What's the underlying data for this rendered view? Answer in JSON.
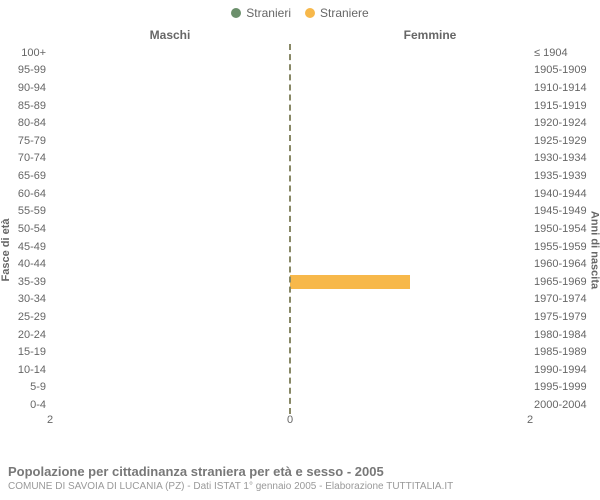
{
  "legend": {
    "items": [
      {
        "label": "Stranieri",
        "color": "#6b8f6b"
      },
      {
        "label": "Straniere",
        "color": "#f7b84a"
      }
    ]
  },
  "headers": {
    "male": "Maschi",
    "female": "Femmine"
  },
  "axis": {
    "left_title": "Fasce di età",
    "right_title": "Anni di nascita",
    "xmax": 2,
    "xticks": [
      {
        "pos": 0,
        "label": "2"
      },
      {
        "pos": 50,
        "label": "0"
      },
      {
        "pos": 100,
        "label": "2"
      }
    ]
  },
  "colors": {
    "male_bar": "#6b8f6b",
    "female_bar": "#f7b84a",
    "background": "#ffffff",
    "text": "#666666",
    "centerline": "#888866"
  },
  "rows": [
    {
      "age": "100+",
      "birth": "≤ 1904",
      "m": 0,
      "f": 0
    },
    {
      "age": "95-99",
      "birth": "1905-1909",
      "m": 0,
      "f": 0
    },
    {
      "age": "90-94",
      "birth": "1910-1914",
      "m": 0,
      "f": 0
    },
    {
      "age": "85-89",
      "birth": "1915-1919",
      "m": 0,
      "f": 0
    },
    {
      "age": "80-84",
      "birth": "1920-1924",
      "m": 0,
      "f": 0
    },
    {
      "age": "75-79",
      "birth": "1925-1929",
      "m": 0,
      "f": 0
    },
    {
      "age": "70-74",
      "birth": "1930-1934",
      "m": 0,
      "f": 0
    },
    {
      "age": "65-69",
      "birth": "1935-1939",
      "m": 0,
      "f": 0
    },
    {
      "age": "60-64",
      "birth": "1940-1944",
      "m": 0,
      "f": 0
    },
    {
      "age": "55-59",
      "birth": "1945-1949",
      "m": 0,
      "f": 0
    },
    {
      "age": "50-54",
      "birth": "1950-1954",
      "m": 0,
      "f": 0
    },
    {
      "age": "45-49",
      "birth": "1955-1959",
      "m": 0,
      "f": 0
    },
    {
      "age": "40-44",
      "birth": "1960-1964",
      "m": 0,
      "f": 0
    },
    {
      "age": "35-39",
      "birth": "1965-1969",
      "m": 0,
      "f": 1
    },
    {
      "age": "30-34",
      "birth": "1970-1974",
      "m": 0,
      "f": 0
    },
    {
      "age": "25-29",
      "birth": "1975-1979",
      "m": 0,
      "f": 0
    },
    {
      "age": "20-24",
      "birth": "1980-1984",
      "m": 0,
      "f": 0
    },
    {
      "age": "15-19",
      "birth": "1985-1989",
      "m": 0,
      "f": 0
    },
    {
      "age": "10-14",
      "birth": "1990-1994",
      "m": 0,
      "f": 0
    },
    {
      "age": "5-9",
      "birth": "1995-1999",
      "m": 0,
      "f": 0
    },
    {
      "age": "0-4",
      "birth": "2000-2004",
      "m": 0,
      "f": 0
    }
  ],
  "footer": {
    "title": "Popolazione per cittadinanza straniera per età e sesso - 2005",
    "subtitle": "COMUNE DI SAVOIA DI LUCANIA (PZ) - Dati ISTAT 1° gennaio 2005 - Elaborazione TUTTITALIA.IT"
  }
}
